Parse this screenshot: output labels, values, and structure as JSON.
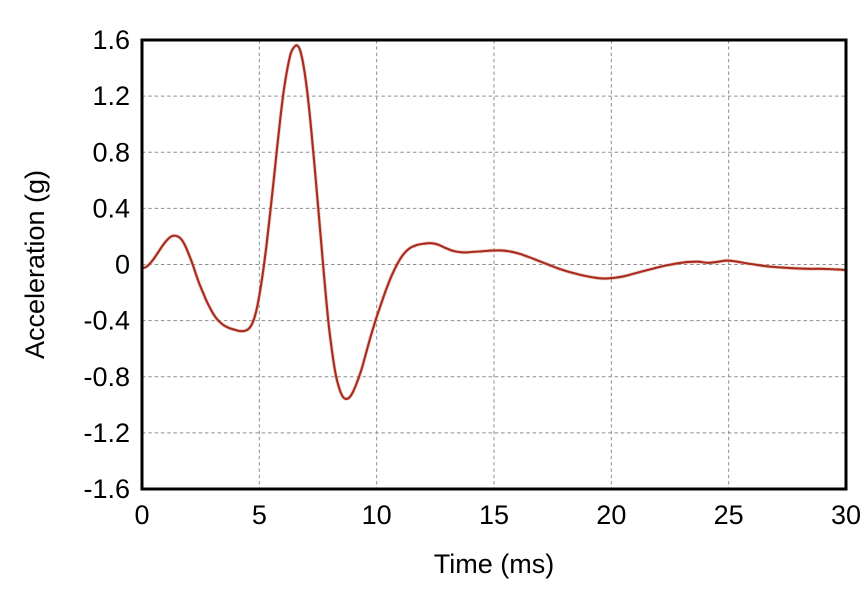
{
  "chart_data": {
    "type": "line",
    "title": "",
    "xlabel": "Time (ms)",
    "ylabel": "Acceleration (g)",
    "xlim": [
      0,
      30
    ],
    "ylim": [
      -1.6,
      1.6
    ],
    "x_tick_values": [
      0,
      5,
      10,
      15,
      20,
      25,
      30
    ],
    "x_tick_labels": [
      "0",
      "5",
      "10",
      "15",
      "20",
      "25",
      "30"
    ],
    "y_tick_values": [
      1.6,
      1.2,
      0.8,
      0.4,
      0,
      -0.4,
      -0.8,
      -1.2,
      -1.6
    ],
    "y_tick_labels": [
      "1.6",
      "1.2",
      "0.8",
      "0.4",
      "0",
      "-0.4",
      "-0.8",
      "-1.2",
      "-1.6"
    ],
    "grid": {
      "style": "dashed",
      "color": "#8f8f8f"
    },
    "legend": "none",
    "series": [
      {
        "name": "acceleration",
        "color": "#a92b1e",
        "points": [
          [
            0,
            -0.025
          ],
          [
            0.15,
            -0.02
          ],
          [
            0.3,
            0.0
          ],
          [
            0.5,
            0.04
          ],
          [
            0.7,
            0.09
          ],
          [
            0.9,
            0.14
          ],
          [
            1.1,
            0.18
          ],
          [
            1.25,
            0.2
          ],
          [
            1.4,
            0.205
          ],
          [
            1.55,
            0.198
          ],
          [
            1.7,
            0.175
          ],
          [
            1.85,
            0.13
          ],
          [
            2.0,
            0.07
          ],
          [
            2.15,
            0.005
          ],
          [
            2.3,
            -0.07
          ],
          [
            2.45,
            -0.14
          ],
          [
            2.6,
            -0.2
          ],
          [
            2.75,
            -0.26
          ],
          [
            2.9,
            -0.31
          ],
          [
            3.05,
            -0.355
          ],
          [
            3.2,
            -0.39
          ],
          [
            3.35,
            -0.415
          ],
          [
            3.5,
            -0.435
          ],
          [
            3.65,
            -0.448
          ],
          [
            3.8,
            -0.458
          ],
          [
            3.95,
            -0.465
          ],
          [
            4.1,
            -0.472
          ],
          [
            4.25,
            -0.475
          ],
          [
            4.4,
            -0.472
          ],
          [
            4.55,
            -0.458
          ],
          [
            4.7,
            -0.42
          ],
          [
            4.85,
            -0.345
          ],
          [
            5.0,
            -0.22
          ],
          [
            5.15,
            -0.06
          ],
          [
            5.3,
            0.13
          ],
          [
            5.45,
            0.35
          ],
          [
            5.6,
            0.58
          ],
          [
            5.75,
            0.82
          ],
          [
            5.9,
            1.05
          ],
          [
            6.05,
            1.25
          ],
          [
            6.2,
            1.4
          ],
          [
            6.35,
            1.51
          ],
          [
            6.5,
            1.553
          ],
          [
            6.62,
            1.56
          ],
          [
            6.75,
            1.52
          ],
          [
            6.9,
            1.4
          ],
          [
            7.05,
            1.22
          ],
          [
            7.2,
            0.98
          ],
          [
            7.35,
            0.71
          ],
          [
            7.5,
            0.42
          ],
          [
            7.65,
            0.13
          ],
          [
            7.8,
            -0.16
          ],
          [
            7.95,
            -0.42
          ],
          [
            8.1,
            -0.62
          ],
          [
            8.25,
            -0.78
          ],
          [
            8.4,
            -0.88
          ],
          [
            8.55,
            -0.94
          ],
          [
            8.7,
            -0.958
          ],
          [
            8.85,
            -0.945
          ],
          [
            9.0,
            -0.905
          ],
          [
            9.15,
            -0.845
          ],
          [
            9.35,
            -0.75
          ],
          [
            9.55,
            -0.63
          ],
          [
            9.75,
            -0.51
          ],
          [
            9.95,
            -0.4
          ],
          [
            10.15,
            -0.3
          ],
          [
            10.4,
            -0.18
          ],
          [
            10.65,
            -0.075
          ],
          [
            10.9,
            0.01
          ],
          [
            11.15,
            0.075
          ],
          [
            11.4,
            0.115
          ],
          [
            11.7,
            0.138
          ],
          [
            12.0,
            0.148
          ],
          [
            12.3,
            0.152
          ],
          [
            12.6,
            0.143
          ],
          [
            12.9,
            0.12
          ],
          [
            13.2,
            0.1
          ],
          [
            13.5,
            0.089
          ],
          [
            13.8,
            0.086
          ],
          [
            14.1,
            0.09
          ],
          [
            14.5,
            0.094
          ],
          [
            14.9,
            0.099
          ],
          [
            15.3,
            0.1
          ],
          [
            15.7,
            0.092
          ],
          [
            16.1,
            0.076
          ],
          [
            16.5,
            0.052
          ],
          [
            16.9,
            0.026
          ],
          [
            17.3,
            0.0
          ],
          [
            17.7,
            -0.026
          ],
          [
            18.1,
            -0.048
          ],
          [
            18.5,
            -0.066
          ],
          [
            18.9,
            -0.082
          ],
          [
            19.3,
            -0.094
          ],
          [
            19.7,
            -0.1
          ],
          [
            20.1,
            -0.096
          ],
          [
            20.5,
            -0.085
          ],
          [
            20.9,
            -0.068
          ],
          [
            21.3,
            -0.05
          ],
          [
            21.7,
            -0.033
          ],
          [
            22.1,
            -0.016
          ],
          [
            22.5,
            -0.002
          ],
          [
            22.9,
            0.01
          ],
          [
            23.3,
            0.018
          ],
          [
            23.7,
            0.02
          ],
          [
            24.1,
            0.012
          ],
          [
            24.5,
            0.018
          ],
          [
            24.9,
            0.028
          ],
          [
            25.3,
            0.022
          ],
          [
            25.7,
            0.01
          ],
          [
            26.1,
            0.0
          ],
          [
            26.5,
            -0.01
          ],
          [
            26.9,
            -0.017
          ],
          [
            27.3,
            -0.022
          ],
          [
            27.7,
            -0.026
          ],
          [
            28.1,
            -0.029
          ],
          [
            28.5,
            -0.031
          ],
          [
            28.9,
            -0.031
          ],
          [
            29.3,
            -0.033
          ],
          [
            29.7,
            -0.036
          ],
          [
            30,
            -0.04
          ]
        ]
      }
    ]
  },
  "colors": {
    "background": "#ffffff",
    "frame": "#000000",
    "grid": "#8f8f8f",
    "text": "#000000",
    "trace": "#a92b1e",
    "trace_halo": "#d9998d"
  }
}
